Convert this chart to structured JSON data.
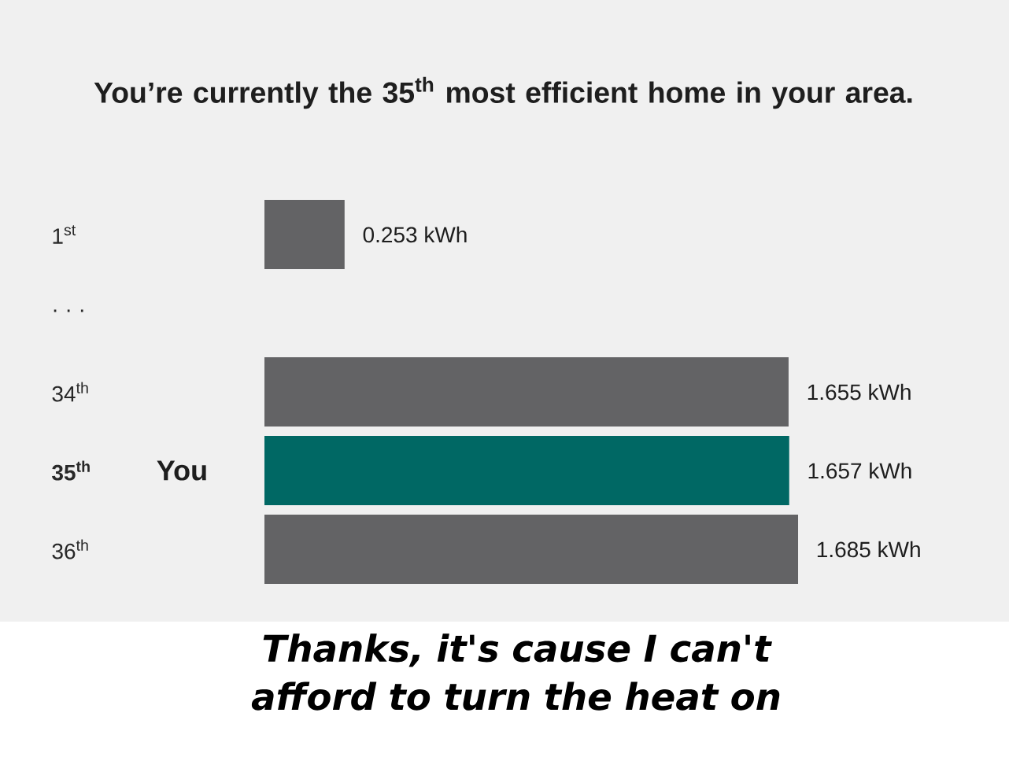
{
  "chart_data": {
    "type": "bar",
    "orientation": "horizontal",
    "title": "You’re currently the 35$^{th}$ most efficient home in your area.",
    "categories": [
      "1$^{st}$",
      "· · ·",
      "34$^{th}$",
      "35$^{th}$",
      "36$^{th}$"
    ],
    "values": [
      0.253,
      null,
      1.655,
      1.657,
      1.685
    ],
    "colors": [
      "#636365",
      "#636365",
      "#636365",
      "#006864",
      "#636365"
    ],
    "value_labels": [
      "0.253 kWh",
      null,
      "1.655 kWh",
      "1.657 kWh",
      "1.685 kWh"
    ],
    "annotations": [
      "You",
      "Thanks, it's cause I can't afford to turn the heat on"
    ]
  }
}
